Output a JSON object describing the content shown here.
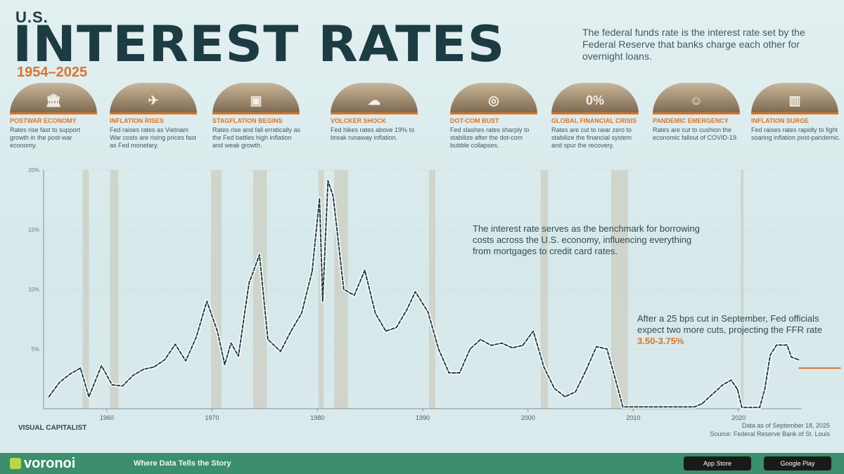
{
  "header": {
    "kicker": "U.S.",
    "title": "INTEREST RATES",
    "years": "1954–2025",
    "intro": "The federal funds rate is the interest rate set by the Federal Reserve that banks charge each other for overnight loans."
  },
  "events": [
    {
      "label": "Postwar Economy",
      "desc": "Rates rise fast to support growth in the post-war economy.",
      "glyph": "🏛"
    },
    {
      "label": "Inflation Rises",
      "desc": "Fed raises rates as Vietnam War costs are rising prices fast as Fed monetary.",
      "glyph": "✈"
    },
    {
      "label": "Stagflation Begins",
      "desc": "Rates rise and fall erratically as the Fed battles high inflation and weak growth.",
      "glyph": "▣"
    },
    {
      "label": "Volcker Shock",
      "desc": "Fed hikes rates above 19% to break runaway inflation.",
      "glyph": "☁"
    },
    {
      "label": "Dot-Com Bust",
      "desc": "Fed slashes rates sharply to stabilize after the dot-com bubble collapses.",
      "glyph": "◎"
    },
    {
      "label": "Global Financial Crisis",
      "desc": "Rates are cut to near zero to stabilize the financial system and spur the recovery.",
      "glyph": "0%"
    },
    {
      "label": "Pandemic Emergency",
      "desc": "Rates are cut to cushion the economic fallout of COVID-19.",
      "glyph": "☺"
    },
    {
      "label": "Inflation Surge",
      "desc": "Fed raises rates rapidly to fight soaring inflation post-pandemic.",
      "glyph": "▥"
    }
  ],
  "annotations": {
    "benchmark": "The interest rate serves as the benchmark for borrowing costs across the U.S. economy, influencing everything from mortgages to credit card rates.",
    "latest_prefix": "After a 25 bps cut in September, Fed officials expect two more cuts, projecting the FFR rate ",
    "latest_highlight": "3.50-3.75%"
  },
  "colors": {
    "line": "#1f4047",
    "accent": "#d9742a",
    "band": "#c9c3b3",
    "footer": "#3b8f6c"
  },
  "chart_data": {
    "type": "line",
    "title": "",
    "xlabel": "",
    "ylabel": "",
    "xlim": [
      1954,
      2026
    ],
    "ylim": [
      0,
      20
    ],
    "x_ticks": [
      "1960",
      "1970",
      "1980",
      "1990",
      "2000",
      "2010",
      "2020"
    ],
    "y_ticks": [
      "5%",
      "10%",
      "15%",
      "20%"
    ],
    "series": [
      {
        "values": [
          [
            1954.5,
            1.0
          ],
          [
            1955.5,
            2.2
          ],
          [
            1956.5,
            2.9
          ],
          [
            1957.5,
            3.4
          ],
          [
            1958.3,
            1.0
          ],
          [
            1959.5,
            3.6
          ],
          [
            1960.5,
            2.0
          ],
          [
            1961.5,
            1.9
          ],
          [
            1962.5,
            2.8
          ],
          [
            1963.5,
            3.3
          ],
          [
            1964.5,
            3.5
          ],
          [
            1965.5,
            4.1
          ],
          [
            1966.5,
            5.4
          ],
          [
            1967.5,
            4.0
          ],
          [
            1968.5,
            6.0
          ],
          [
            1969.5,
            9.0
          ],
          [
            1970.5,
            6.5
          ],
          [
            1971.2,
            3.7
          ],
          [
            1971.8,
            5.5
          ],
          [
            1972.5,
            4.4
          ],
          [
            1973.5,
            10.5
          ],
          [
            1974.5,
            12.9
          ],
          [
            1975.3,
            5.8
          ],
          [
            1976.5,
            4.8
          ],
          [
            1977.5,
            6.5
          ],
          [
            1978.5,
            8.0
          ],
          [
            1979.5,
            11.5
          ],
          [
            1980.2,
            17.6
          ],
          [
            1980.5,
            9.0
          ],
          [
            1981.0,
            19.1
          ],
          [
            1981.5,
            17.8
          ],
          [
            1982.5,
            10.0
          ],
          [
            1983.5,
            9.5
          ],
          [
            1984.5,
            11.6
          ],
          [
            1985.5,
            8.0
          ],
          [
            1986.5,
            6.5
          ],
          [
            1987.5,
            6.8
          ],
          [
            1988.5,
            8.3
          ],
          [
            1989.3,
            9.8
          ],
          [
            1990.5,
            8.1
          ],
          [
            1991.5,
            5.0
          ],
          [
            1992.5,
            3.0
          ],
          [
            1993.5,
            3.0
          ],
          [
            1994.5,
            5.0
          ],
          [
            1995.5,
            5.8
          ],
          [
            1996.5,
            5.3
          ],
          [
            1997.5,
            5.5
          ],
          [
            1998.5,
            5.1
          ],
          [
            1999.5,
            5.3
          ],
          [
            2000.5,
            6.5
          ],
          [
            2001.5,
            3.5
          ],
          [
            2002.5,
            1.7
          ],
          [
            2003.5,
            1.0
          ],
          [
            2004.5,
            1.4
          ],
          [
            2005.5,
            3.2
          ],
          [
            2006.5,
            5.2
          ],
          [
            2007.5,
            5.0
          ],
          [
            2008.5,
            1.8
          ],
          [
            2009.0,
            0.15
          ],
          [
            2012.0,
            0.15
          ],
          [
            2015.8,
            0.15
          ],
          [
            2016.5,
            0.4
          ],
          [
            2017.5,
            1.2
          ],
          [
            2018.5,
            2.0
          ],
          [
            2019.3,
            2.4
          ],
          [
            2019.9,
            1.6
          ],
          [
            2020.3,
            0.1
          ],
          [
            2022.0,
            0.1
          ],
          [
            2022.5,
            1.7
          ],
          [
            2023.0,
            4.5
          ],
          [
            2023.6,
            5.33
          ],
          [
            2024.6,
            5.33
          ],
          [
            2024.9,
            4.6
          ],
          [
            2025.0,
            4.33
          ],
          [
            2025.7,
            4.1
          ]
        ]
      }
    ],
    "event_bands": [
      [
        1957.7,
        1958.3
      ],
      [
        1960.3,
        1961.1
      ],
      [
        1969.9,
        1970.9
      ],
      [
        1973.9,
        1975.2
      ],
      [
        1980.1,
        1980.6
      ],
      [
        1981.6,
        1982.9
      ],
      [
        1990.6,
        1991.2
      ],
      [
        2001.2,
        2001.9
      ],
      [
        2007.9,
        2009.5
      ],
      [
        2020.2,
        2020.4
      ]
    ]
  },
  "footer": {
    "logo": "voronoi",
    "tagline": "Where Data Tells the Story",
    "app_store": "App Store",
    "google_play": "Google Play"
  },
  "notes": {
    "line1": "Data as of September 18, 2025",
    "line2": "Source: Federal Reserve Bank of St. Louis"
  },
  "brand_small": "VISUAL CAPITALIST"
}
